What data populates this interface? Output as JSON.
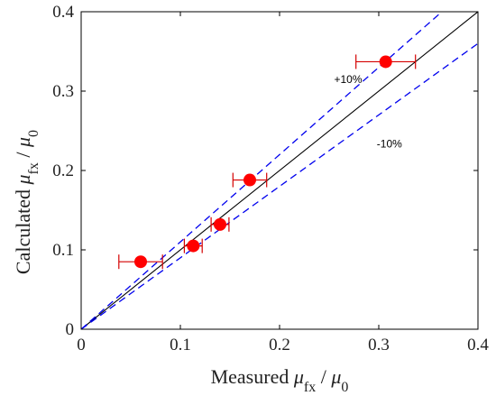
{
  "chart_data": {
    "type": "scatter",
    "xlim": [
      0,
      0.4
    ],
    "ylim": [
      0,
      0.4
    ],
    "xticks": [
      "0",
      "0.1",
      "0.2",
      "0.3",
      "0.4"
    ],
    "yticks": [
      "0",
      "0.1",
      "0.2",
      "0.3",
      "0.4"
    ],
    "xlabel": {
      "prefix": "Measured ",
      "num": "μ",
      "num_sub": "fx",
      "sep": " / ",
      "den": "μ",
      "den_sub": "0"
    },
    "ylabel": {
      "prefix": "Calculated ",
      "num": "μ",
      "num_sub": "fx",
      "sep": " / ",
      "den": "μ",
      "den_sub": "0"
    },
    "points": [
      {
        "x": 0.06,
        "y": 0.085,
        "xerr": 0.022
      },
      {
        "x": 0.113,
        "y": 0.105,
        "xerr": 0.009
      },
      {
        "x": 0.14,
        "y": 0.132,
        "xerr": 0.009
      },
      {
        "x": 0.17,
        "y": 0.188,
        "xerr": 0.017
      },
      {
        "x": 0.307,
        "y": 0.337,
        "xerr": 0.03
      }
    ],
    "reference_lines": [
      {
        "slope": 1.0,
        "color": "#000000",
        "style": "solid"
      },
      {
        "slope": 1.1,
        "color": "#0000ee",
        "style": "dashed"
      },
      {
        "slope": 0.9,
        "color": "#0000ee",
        "style": "dashed"
      }
    ],
    "annotations": [
      {
        "text": "+10%",
        "x": 0.255,
        "y": 0.31
      },
      {
        "text": "-10%",
        "x": 0.298,
        "y": 0.229
      }
    ],
    "colors": {
      "marker": "#ff0000",
      "errorbar": "#d40000",
      "identity": "#000000",
      "bounds": "#0000ee"
    },
    "grid": false
  }
}
